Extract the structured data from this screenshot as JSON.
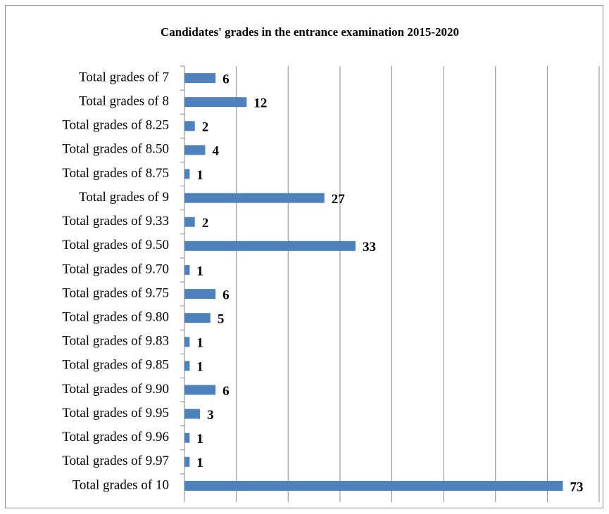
{
  "chart_data": {
    "type": "bar",
    "orientation": "horizontal",
    "title": "Candidates' grades in the entrance examination 2015-2020",
    "categories": [
      "Total grades of 7",
      "Total grades of 8",
      "Total grades of 8.25",
      "Total grades of 8.50",
      "Total grades of 8.75",
      "Total grades of 9",
      "Total grades of 9.33",
      "Total grades of 9.50",
      "Total grades of 9.70",
      "Total grades of 9.75",
      "Total grades of 9.80",
      "Total grades of 9.83",
      "Total grades of 9.85",
      "Total grades of 9.90",
      "Total grades of 9.95",
      "Total grades of 9.96",
      "Total grades of 9.97",
      "Total grades of 10"
    ],
    "values": [
      6,
      12,
      2,
      4,
      1,
      27,
      2,
      33,
      1,
      6,
      5,
      1,
      1,
      6,
      3,
      1,
      1,
      73
    ],
    "color": "#4f81bd",
    "xlim": [
      0,
      80
    ],
    "xticks": [
      0,
      10,
      20,
      30,
      40,
      50,
      60,
      70,
      80
    ],
    "grid": true
  }
}
